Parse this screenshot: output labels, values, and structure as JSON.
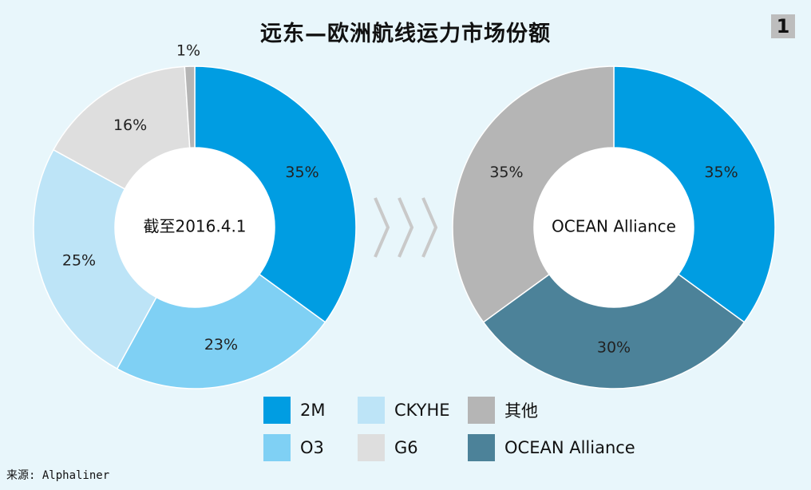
{
  "header": {
    "title": "远东—欧洲航线运力市场份额",
    "badge": "1"
  },
  "footer": {
    "source": "来源: Alphaliner"
  },
  "chart_data": [
    {
      "type": "pie",
      "variant": "donut",
      "center_label": "截至2016.4.1",
      "categories": [
        "2M",
        "O3",
        "CKYHE",
        "G6",
        "其他"
      ],
      "values": [
        35,
        23,
        25,
        16,
        1
      ],
      "labels": [
        "35%",
        "23%",
        "25%",
        "16%",
        "1%"
      ],
      "colors": [
        "#009de2",
        "#7fd0f4",
        "#bde4f7",
        "#dedede",
        "#b5b5b5"
      ]
    },
    {
      "type": "pie",
      "variant": "donut",
      "center_label": "OCEAN Alliance",
      "categories": [
        "2M",
        "OCEAN Alliance",
        "其他"
      ],
      "values": [
        35,
        30,
        35
      ],
      "labels": [
        "35%",
        "30%",
        "35%"
      ],
      "colors": [
        "#009de2",
        "#4c8299",
        "#b5b5b5"
      ]
    }
  ],
  "legend": {
    "items": [
      {
        "label": "2M",
        "color": "#009de2"
      },
      {
        "label": "CKYHE",
        "color": "#bde4f7"
      },
      {
        "label": "其他",
        "color": "#b5b5b5"
      },
      {
        "label": "O3",
        "color": "#7fd0f4"
      },
      {
        "label": "G6",
        "color": "#dedede"
      },
      {
        "label": "OCEAN Alliance",
        "color": "#4c8299"
      }
    ]
  },
  "arrow_icon": "chevron-right-icon",
  "arrow_color": "#c9c9c9"
}
